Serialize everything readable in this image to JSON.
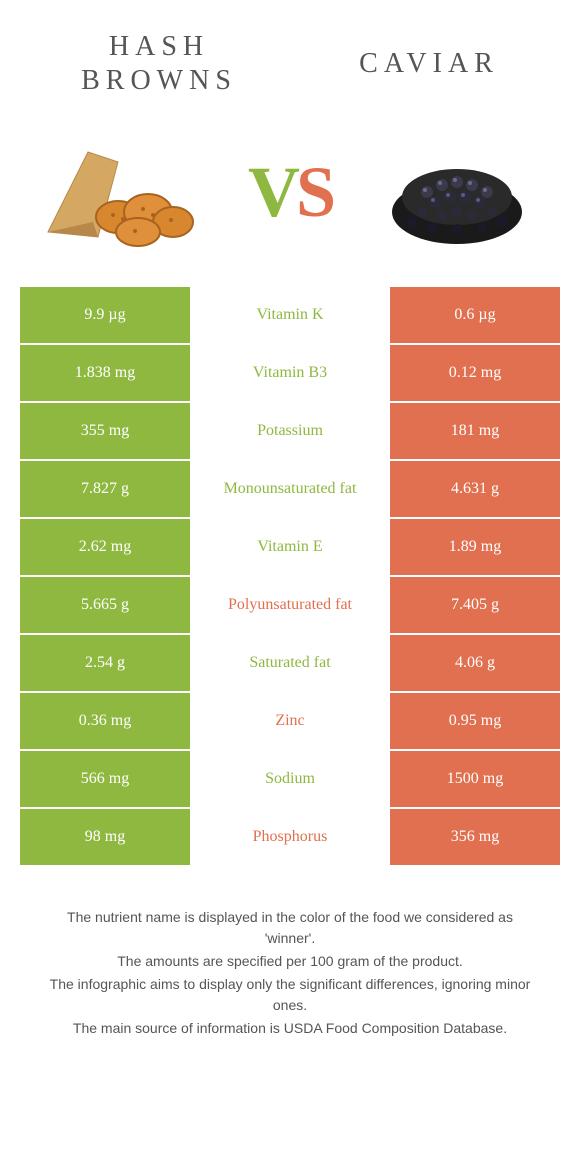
{
  "colors": {
    "left_bg": "#8fb840",
    "right_bg": "#e07050",
    "left_text": "#8fb840",
    "right_text": "#e07050",
    "cell_text": "#ffffff",
    "title_text": "#555555"
  },
  "header": {
    "left_title_1": "HASH",
    "left_title_2": "BROWNS",
    "right_title": "CAVIAR",
    "vs_v": "V",
    "vs_s": "S"
  },
  "rows": [
    {
      "left": "9.9 µg",
      "mid": "Vitamin K",
      "right": "0.6 µg",
      "winner": "left"
    },
    {
      "left": "1.838 mg",
      "mid": "Vitamin B3",
      "right": "0.12 mg",
      "winner": "left"
    },
    {
      "left": "355 mg",
      "mid": "Potassium",
      "right": "181 mg",
      "winner": "left"
    },
    {
      "left": "7.827 g",
      "mid": "Monounsaturated fat",
      "right": "4.631 g",
      "winner": "left"
    },
    {
      "left": "2.62 mg",
      "mid": "Vitamin E",
      "right": "1.89 mg",
      "winner": "left"
    },
    {
      "left": "5.665 g",
      "mid": "Polyunsaturated fat",
      "right": "7.405 g",
      "winner": "right"
    },
    {
      "left": "2.54 g",
      "mid": "Saturated fat",
      "right": "4.06 g",
      "winner": "left"
    },
    {
      "left": "0.36 mg",
      "mid": "Zinc",
      "right": "0.95 mg",
      "winner": "right"
    },
    {
      "left": "566 mg",
      "mid": "Sodium",
      "right": "1500 mg",
      "winner": "left"
    },
    {
      "left": "98 mg",
      "mid": "Phosphorus",
      "right": "356 mg",
      "winner": "right"
    }
  ],
  "footer": {
    "line1": "The nutrient name is displayed in the color of the food we considered as 'winner'.",
    "line2": "The amounts are specified per 100 gram of the product.",
    "line3": "The infographic aims to display only the significant differences, ignoring minor ones.",
    "line4": "The main source of information is USDA Food Composition Database."
  }
}
